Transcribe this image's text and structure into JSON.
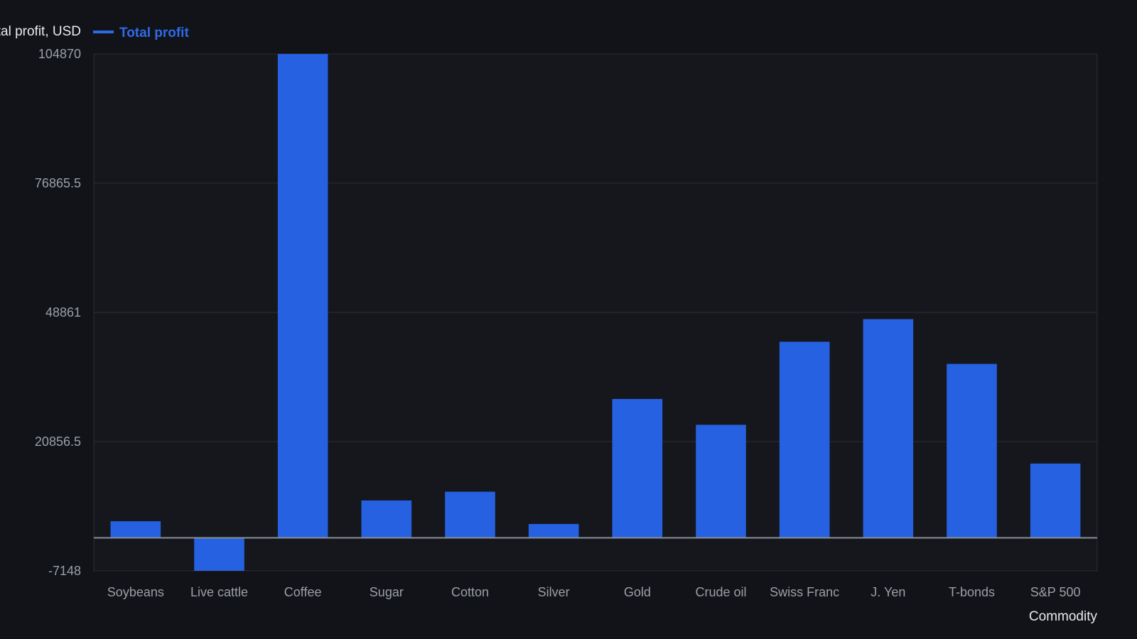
{
  "chart_data": {
    "type": "bar",
    "title": "",
    "ylabel": "Total profit, USD",
    "xlabel": "Commodity",
    "legend": {
      "position": "top-left",
      "entries": [
        "Total profit"
      ]
    },
    "categories": [
      "Soybeans",
      "Live cattle",
      "Coffee",
      "Sugar",
      "Cotton",
      "Silver",
      "Gold",
      "Crude oil",
      "Swiss Franc",
      "J. Yen",
      "T-bonds",
      "S&P 500"
    ],
    "series": [
      {
        "name": "Total profit",
        "color": "#2561e0",
        "values": [
          3600,
          -7148,
          104870,
          8100,
          10000,
          3000,
          30100,
          24500,
          42500,
          47400,
          37700,
          16100
        ]
      }
    ],
    "ylim": [
      -7148,
      104870
    ],
    "yticks": [
      "104870",
      "76865.5",
      "48861",
      "20856.5",
      "-7148"
    ],
    "ytick_values": [
      104870,
      76865.5,
      48861,
      20856.5,
      -7148
    ],
    "grid": true
  },
  "colors": {
    "background": "#111318",
    "plot_background": "#15171c",
    "bar": "#2561e0",
    "grid": "#2a2d33",
    "zero_line": "#8a8f96",
    "legend_text": "#2f6ae6"
  }
}
